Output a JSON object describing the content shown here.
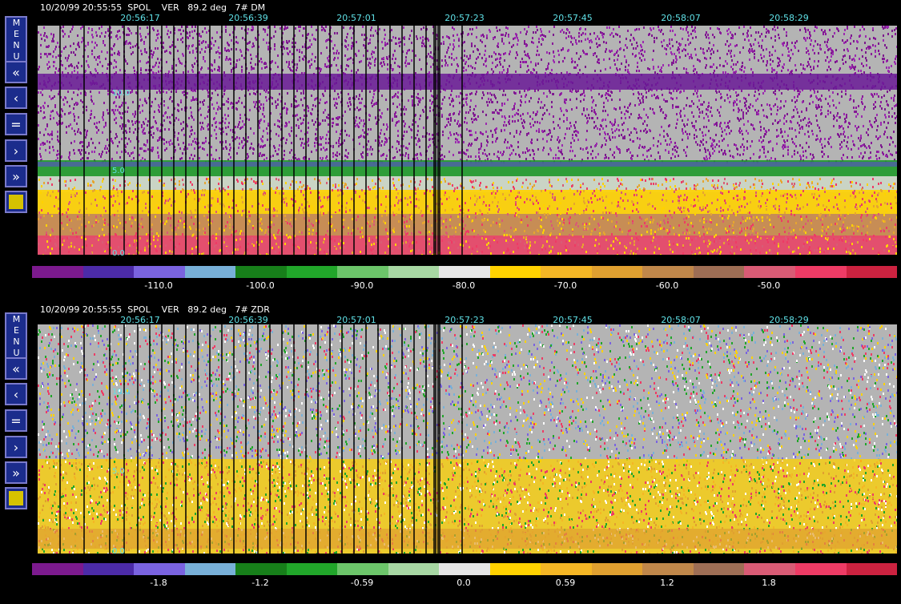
{
  "panels": [
    {
      "id": "dm",
      "header": "10/20/99 20:55:55  SPOL    VER   89.2 deg   7# DM",
      "times": [
        "20:56:17",
        "20:56:39",
        "20:57:01",
        "20:57:23",
        "20:57:45",
        "20:58:07",
        "20:58:29"
      ],
      "y_labels": [
        "10.0",
        "5.0",
        "0.0"
      ],
      "colorbar_labels": [
        "-110.0",
        "-100.0",
        "-90.0",
        "-80.0",
        "-70.0",
        "-60.0",
        "-50.0"
      ],
      "colors": [
        "#7c1a8e",
        "#4c2ba8",
        "#7a63e0",
        "#78b0d8",
        "#177f1a",
        "#21a62a",
        "#6cc56a",
        "#a7d7a3",
        "#e6e6e6",
        "#ffd200",
        "#f4b625",
        "#e0a030",
        "#c0874a",
        "#9e6e55",
        "#d95b75",
        "#ee3b65",
        "#cc2240"
      ]
    },
    {
      "id": "zdr",
      "header": "10/20/99 20:55:55  SPOL    VER   89.2 deg   7# ZDR",
      "times": [
        "20:56:17",
        "20:56:39",
        "20:57:01",
        "20:57:23",
        "20:57:45",
        "20:58:07",
        "20:58:29"
      ],
      "y_labels": [
        "10.0",
        "5.0",
        "0.0"
      ],
      "colorbar_labels": [
        "-1.8",
        "-1.2",
        "-0.59",
        "0.0",
        "0.59",
        "1.2",
        "1.8"
      ],
      "colors": [
        "#7c1a8e",
        "#4c2ba8",
        "#7a63e0",
        "#78b0d8",
        "#177f1a",
        "#21a62a",
        "#6cc56a",
        "#a7d7a3",
        "#e6e6e6",
        "#ffd200",
        "#f4b625",
        "#e0a030",
        "#c0874a",
        "#9e6e55",
        "#d95b75",
        "#ee3b65",
        "#cc2240"
      ]
    }
  ],
  "toolbar": {
    "menu_label": "MENU",
    "buttons": [
      {
        "name": "rewind-fast-button",
        "glyph": "«"
      },
      {
        "name": "step-back-button",
        "glyph": "‹"
      },
      {
        "name": "stop-button",
        "glyph": "="
      },
      {
        "name": "step-forward-button",
        "glyph": "›"
      },
      {
        "name": "forward-fast-button",
        "glyph": "»"
      }
    ]
  }
}
